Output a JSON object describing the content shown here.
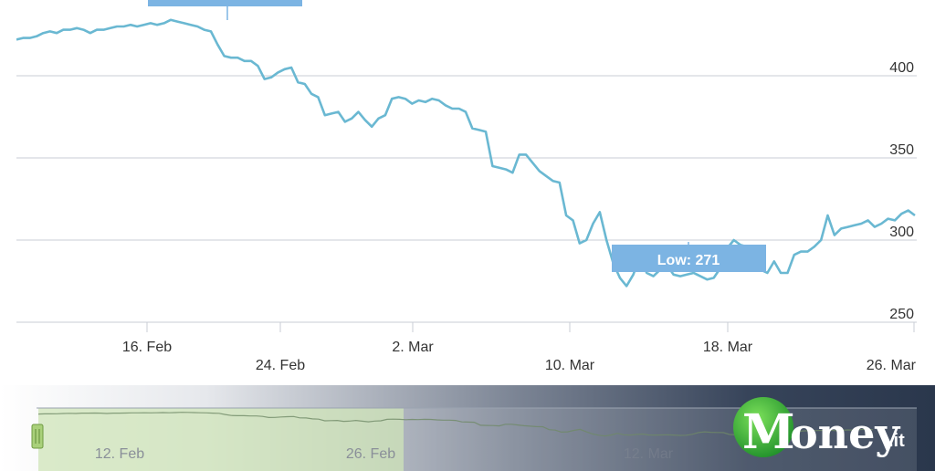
{
  "chart_data": {
    "type": "line",
    "ylim": [
      250,
      410
    ],
    "y_ticks": [
      250,
      300,
      350,
      400
    ],
    "x_ticks": [
      "16. Feb",
      "24. Feb",
      "2. Mar",
      "10. Mar",
      "18. Mar",
      "26. Mar"
    ],
    "series": [
      {
        "color": "#6ab8d2",
        "values": [
          422,
          423,
          423,
          424,
          426,
          427,
          426,
          428,
          428,
          429,
          428,
          426,
          428,
          428,
          429,
          430,
          430,
          431,
          430,
          431,
          432,
          431,
          432,
          434,
          433,
          432,
          431,
          430,
          428,
          427,
          419,
          412,
          411,
          411,
          409,
          409,
          406,
          398,
          399,
          402,
          404,
          405,
          396,
          395,
          389,
          387,
          376,
          377,
          378,
          372,
          374,
          378,
          373,
          369,
          374,
          376,
          386,
          387,
          386,
          383,
          385,
          384,
          386,
          385,
          382,
          380,
          380,
          378,
          368,
          367,
          366,
          345,
          344,
          343,
          341,
          352,
          352,
          347,
          342,
          339,
          336,
          335,
          315,
          312,
          298,
          300,
          310,
          317,
          300,
          286,
          277,
          272,
          279,
          290,
          280,
          278,
          282,
          285,
          279,
          278,
          279,
          280,
          278,
          276,
          277,
          283,
          295,
          300,
          297,
          296,
          295,
          282,
          280,
          287,
          280,
          280,
          291,
          293,
          293,
          296,
          300,
          315,
          303,
          307,
          308,
          309,
          310,
          312,
          308,
          310,
          313,
          312,
          316,
          318,
          315
        ]
      }
    ],
    "flags": [
      {
        "text": "Low: 271"
      }
    ]
  },
  "colors": {
    "series": "#6ab8d2",
    "flag": "#7cb4e3",
    "grid": "#c8ccd4",
    "navigator_fill": "#cfe4b8",
    "navigator_handle": "#a9d07a",
    "banner_dark": "#2d3b52"
  },
  "navigator": {
    "labels": [
      "12. Feb",
      "26. Feb",
      "12. Mar"
    ]
  },
  "logo": {
    "initial": "M",
    "rest": "oney",
    "suffix": ".it"
  }
}
